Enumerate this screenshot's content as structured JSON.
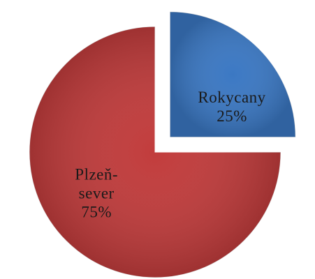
{
  "chart_data": {
    "type": "pie",
    "categories": [
      "Rokycany",
      "Plzeň-sever"
    ],
    "values": [
      25,
      75
    ],
    "value_labels": [
      "25%",
      "75%"
    ],
    "colors": [
      "#3b78c3",
      "#c13c3c"
    ],
    "exploded": [
      true,
      false
    ]
  }
}
